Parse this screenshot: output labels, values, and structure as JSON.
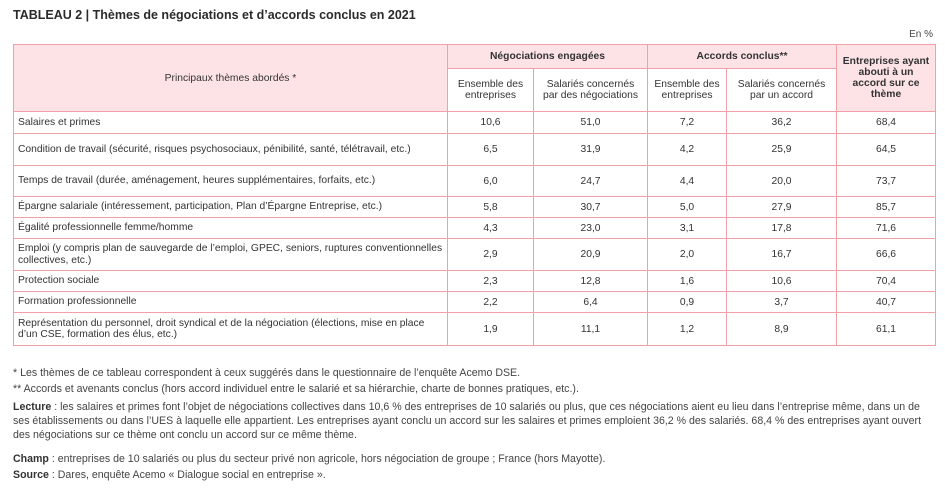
{
  "title": "TABLEAU 2 | Thèmes de négociations et d’accords conclus en 2021",
  "unit": "En %",
  "header": {
    "row_label": "Principaux thèmes abordés *",
    "group_nego": "Négociations engagées",
    "group_accords": "Accords conclus**",
    "col_entreprises_accord": "Entreprises ayant abouti à un accord sur ce thème",
    "nego_ensemble": "Ensemble des entreprises",
    "nego_salaries": "Salariés concernés par des négociations",
    "acc_ensemble": "Ensemble des entreprises",
    "acc_salaries": "Salariés concernés par un accord"
  },
  "rows": [
    {
      "label": "Salaires et primes",
      "v1": "10,6",
      "v2": "51,0",
      "v3": "7,2",
      "v4": "36,2",
      "v5": "68,4"
    },
    {
      "label": "Condition de travail (sécurité, risques psychosociaux, pénibilité, santé, télétravail, etc.)",
      "v1": "6,5",
      "v2": "31,9",
      "v3": "4,2",
      "v4": "25,9",
      "v5": "64,5"
    },
    {
      "label": "Temps de travail (durée, aménagement, heures supplémentaires, forfaits, etc.)",
      "v1": "6,0",
      "v2": "24,7",
      "v3": "4,4",
      "v4": "20,0",
      "v5": "73,7"
    },
    {
      "label": "Épargne salariale (intéressement, participation, Plan d’Épargne Entreprise, etc.)",
      "v1": "5,8",
      "v2": "30,7",
      "v3": "5,0",
      "v4": "27,9",
      "v5": "85,7"
    },
    {
      "label": "Égalité professionnelle femme/homme",
      "v1": "4,3",
      "v2": "23,0",
      "v3": "3,1",
      "v4": "17,8",
      "v5": "71,6"
    },
    {
      "label": "Emploi (y compris plan de sauvegarde de l’emploi, GPEC, seniors, ruptures conventionnelles collectives, etc.)",
      "v1": "2,9",
      "v2": "20,9",
      "v3": "2,0",
      "v4": "16,7",
      "v5": "66,6"
    },
    {
      "label": "Protection sociale",
      "v1": "2,3",
      "v2": "12,8",
      "v3": "1,6",
      "v4": "10,6",
      "v5": "70,4"
    },
    {
      "label": "Formation professionnelle",
      "v1": "2,2",
      "v2": "6,4",
      "v3": "0,9",
      "v4": "3,7",
      "v5": "40,7"
    },
    {
      "label": "Représentation du personnel, droit syndical et de la négociation (élections, mise en place d’un CSE, formation des élus, etc.)",
      "v1": "1,9",
      "v2": "11,1",
      "v3": "1,2",
      "v4": "8,9",
      "v5": "61,1"
    }
  ],
  "footnotes": {
    "note1": "* Les thèmes de ce tableau correspondent à ceux suggérés dans le questionnaire de l’enquête Acemo DSE.",
    "note2": "** Accords et avenants conclus (hors accord individuel entre le salarié et sa hiérarchie, charte de bonnes pratiques, etc.).",
    "lecture_label": "Lecture",
    "lecture_text": " : les salaires et primes font l’objet de négociations collectives dans 10,6 % des entreprises de 10 salariés ou plus, que ces négociations aient eu lieu dans l’entreprise même, dans un de ses établissements ou dans l’UES à laquelle elle appartient. Les entreprises ayant conclu un accord sur les salaires et primes emploient 36,2 % des salariés. 68,4 % des entreprises ayant ouvert des négociations sur ce thème ont conclu un accord sur ce même thème.",
    "champ_label": "Champ",
    "champ_text": " : entreprises de 10 salariés ou plus du secteur privé non agricole, hors négociation de groupe ; France (hors Mayotte).",
    "source_label": "Source",
    "source_text": " : Dares, enquête Acemo « Dialogue social en entreprise »."
  },
  "colors": {
    "border": "#f0a0a6",
    "header_fill": "#fde3e6"
  }
}
